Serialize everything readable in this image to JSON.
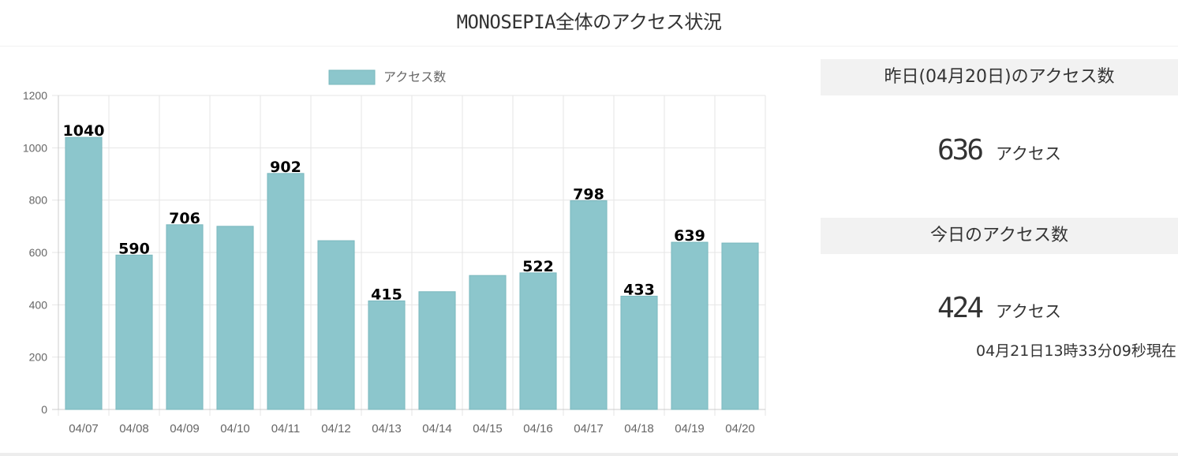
{
  "page": {
    "title": "MONOSEPIA全体のアクセス状況"
  },
  "yesterday": {
    "header": "昨日(04月20日)のアクセス数",
    "value": "636",
    "unit": "アクセス"
  },
  "today": {
    "header": "今日のアクセス数",
    "value": "424",
    "unit": "アクセス",
    "updated": "04月21日13時33分09秒現在"
  },
  "colors": {
    "bar_fill": "#8cc6cc",
    "bar_stroke": "#7ab8be",
    "grid": "#e6e6e6",
    "axis_text": "#666666",
    "label_text": "#000000"
  },
  "chart_data": {
    "type": "bar",
    "legend": "アクセス数",
    "legend_position": "top",
    "grid": true,
    "ylim": [
      0,
      1200
    ],
    "yticks": [
      "0",
      "200",
      "400",
      "600",
      "800",
      "1000",
      "1200"
    ],
    "categories": [
      "04/07",
      "04/08",
      "04/09",
      "04/10",
      "04/11",
      "04/12",
      "04/13",
      "04/14",
      "04/15",
      "04/16",
      "04/17",
      "04/18",
      "04/19",
      "04/20"
    ],
    "values": [
      1040,
      590,
      706,
      700,
      902,
      645,
      415,
      450,
      512,
      522,
      798,
      433,
      639,
      636
    ],
    "data_labels": [
      "1040",
      "590",
      "706",
      "",
      "902",
      "",
      "415",
      "",
      "",
      "522",
      "798",
      "433",
      "639",
      ""
    ]
  }
}
